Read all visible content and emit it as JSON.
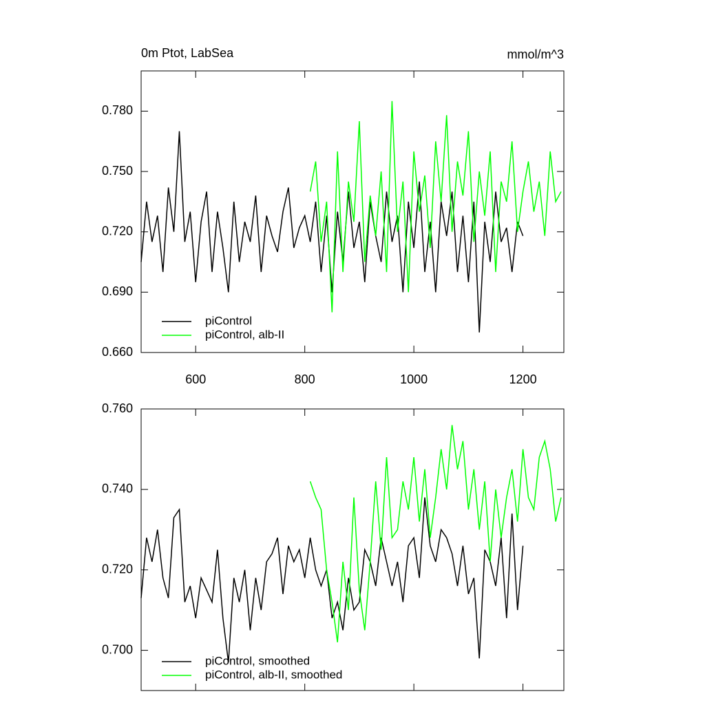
{
  "chart_data": [
    {
      "type": "line",
      "title": "0m Ptot, LabSea",
      "units": "mmol/m^3",
      "xlim": [
        500,
        1275
      ],
      "xticks": [
        600,
        800,
        1000,
        1200
      ],
      "ylim": [
        0.66,
        0.8
      ],
      "yticks": [
        {
          "value": 0.66,
          "label": "0.660"
        },
        {
          "value": 0.69,
          "label": "0.690"
        },
        {
          "value": 0.72,
          "label": "0.720"
        },
        {
          "value": 0.75,
          "label": "0.750"
        },
        {
          "value": 0.78,
          "label": "0.780"
        }
      ],
      "series": [
        {
          "name": "piControl",
          "color": "#000000",
          "x": [
            500,
            510,
            520,
            530,
            540,
            550,
            560,
            570,
            580,
            590,
            600,
            610,
            620,
            630,
            640,
            650,
            660,
            670,
            680,
            690,
            700,
            710,
            720,
            730,
            740,
            750,
            760,
            770,
            780,
            790,
            800,
            810,
            820,
            830,
            840,
            850,
            860,
            870,
            880,
            890,
            900,
            910,
            920,
            930,
            940,
            950,
            960,
            970,
            980,
            990,
            1000,
            1010,
            1020,
            1030,
            1040,
            1050,
            1060,
            1070,
            1080,
            1090,
            1100,
            1110,
            1120,
            1130,
            1140,
            1150,
            1160,
            1170,
            1180,
            1190,
            1200
          ],
          "values": [
            0.705,
            0.735,
            0.715,
            0.728,
            0.7,
            0.742,
            0.72,
            0.77,
            0.715,
            0.73,
            0.695,
            0.725,
            0.74,
            0.7,
            0.73,
            0.712,
            0.69,
            0.735,
            0.705,
            0.725,
            0.715,
            0.738,
            0.7,
            0.728,
            0.718,
            0.71,
            0.73,
            0.742,
            0.712,
            0.722,
            0.728,
            0.715,
            0.735,
            0.7,
            0.728,
            0.69,
            0.73,
            0.705,
            0.74,
            0.712,
            0.725,
            0.695,
            0.735,
            0.718,
            0.705,
            0.74,
            0.715,
            0.728,
            0.69,
            0.735,
            0.712,
            0.745,
            0.7,
            0.725,
            0.69,
            0.735,
            0.718,
            0.74,
            0.7,
            0.728,
            0.695,
            0.735,
            0.67,
            0.725,
            0.705,
            0.74,
            0.715,
            0.722,
            0.7,
            0.725,
            0.718
          ]
        },
        {
          "name": "piControl, alb-II",
          "color": "#00ff00",
          "x": [
            810,
            820,
            830,
            840,
            850,
            860,
            870,
            880,
            890,
            900,
            910,
            920,
            930,
            940,
            950,
            960,
            970,
            980,
            990,
            1000,
            1010,
            1020,
            1030,
            1040,
            1050,
            1060,
            1070,
            1080,
            1090,
            1100,
            1110,
            1120,
            1130,
            1140,
            1150,
            1160,
            1170,
            1180,
            1190,
            1200,
            1210,
            1220,
            1230,
            1240,
            1250,
            1260,
            1270
          ],
          "values": [
            0.74,
            0.755,
            0.715,
            0.735,
            0.68,
            0.76,
            0.7,
            0.745,
            0.725,
            0.775,
            0.705,
            0.738,
            0.718,
            0.75,
            0.7,
            0.785,
            0.72,
            0.745,
            0.69,
            0.76,
            0.73,
            0.748,
            0.712,
            0.765,
            0.735,
            0.778,
            0.72,
            0.755,
            0.738,
            0.77,
            0.715,
            0.75,
            0.728,
            0.76,
            0.7,
            0.745,
            0.735,
            0.765,
            0.72,
            0.74,
            0.755,
            0.73,
            0.745,
            0.718,
            0.76,
            0.735,
            0.74
          ]
        }
      ]
    },
    {
      "type": "line",
      "xlim": [
        500,
        1275
      ],
      "xticks": [
        600,
        800,
        1000,
        1200
      ],
      "ylim": [
        0.69,
        0.76
      ],
      "yticks": [
        {
          "value": 0.7,
          "label": "0.700"
        },
        {
          "value": 0.72,
          "label": "0.720"
        },
        {
          "value": 0.74,
          "label": "0.740"
        },
        {
          "value": 0.76,
          "label": "0.760"
        }
      ],
      "series": [
        {
          "name": "piControl, smoothed",
          "color": "#000000",
          "x": [
            500,
            510,
            520,
            530,
            540,
            550,
            560,
            570,
            580,
            590,
            600,
            610,
            620,
            630,
            640,
            650,
            660,
            670,
            680,
            690,
            700,
            710,
            720,
            730,
            740,
            750,
            760,
            770,
            780,
            790,
            800,
            810,
            820,
            830,
            840,
            850,
            860,
            870,
            880,
            890,
            900,
            910,
            920,
            930,
            940,
            950,
            960,
            970,
            980,
            990,
            1000,
            1010,
            1020,
            1030,
            1040,
            1050,
            1060,
            1070,
            1080,
            1090,
            1100,
            1110,
            1120,
            1130,
            1140,
            1150,
            1160,
            1170,
            1180,
            1190,
            1200
          ],
          "values": [
            0.713,
            0.728,
            0.722,
            0.73,
            0.718,
            0.713,
            0.733,
            0.735,
            0.712,
            0.716,
            0.708,
            0.718,
            0.715,
            0.712,
            0.725,
            0.708,
            0.697,
            0.718,
            0.712,
            0.72,
            0.705,
            0.718,
            0.71,
            0.722,
            0.724,
            0.728,
            0.714,
            0.726,
            0.722,
            0.725,
            0.718,
            0.728,
            0.72,
            0.716,
            0.72,
            0.708,
            0.712,
            0.705,
            0.718,
            0.71,
            0.712,
            0.725,
            0.722,
            0.716,
            0.728,
            0.722,
            0.716,
            0.722,
            0.712,
            0.726,
            0.728,
            0.718,
            0.738,
            0.726,
            0.722,
            0.73,
            0.728,
            0.724,
            0.716,
            0.726,
            0.714,
            0.718,
            0.698,
            0.725,
            0.722,
            0.716,
            0.728,
            0.708,
            0.734,
            0.71,
            0.726
          ]
        },
        {
          "name": "piControl, alb-II, smoothed",
          "color": "#00ff00",
          "x": [
            810,
            820,
            830,
            840,
            850,
            860,
            870,
            880,
            890,
            900,
            910,
            920,
            930,
            940,
            950,
            960,
            970,
            980,
            990,
            1000,
            1010,
            1020,
            1030,
            1040,
            1050,
            1060,
            1070,
            1080,
            1090,
            1100,
            1110,
            1120,
            1130,
            1140,
            1150,
            1160,
            1170,
            1180,
            1190,
            1200,
            1210,
            1220,
            1230,
            1240,
            1250,
            1260,
            1270
          ],
          "values": [
            0.742,
            0.738,
            0.735,
            0.72,
            0.712,
            0.702,
            0.722,
            0.71,
            0.738,
            0.715,
            0.705,
            0.722,
            0.742,
            0.725,
            0.748,
            0.728,
            0.73,
            0.742,
            0.735,
            0.748,
            0.732,
            0.745,
            0.728,
            0.738,
            0.75,
            0.74,
            0.756,
            0.745,
            0.752,
            0.735,
            0.745,
            0.73,
            0.742,
            0.722,
            0.74,
            0.728,
            0.738,
            0.745,
            0.732,
            0.75,
            0.738,
            0.735,
            0.748,
            0.752,
            0.745,
            0.732,
            0.738
          ]
        }
      ]
    }
  ]
}
